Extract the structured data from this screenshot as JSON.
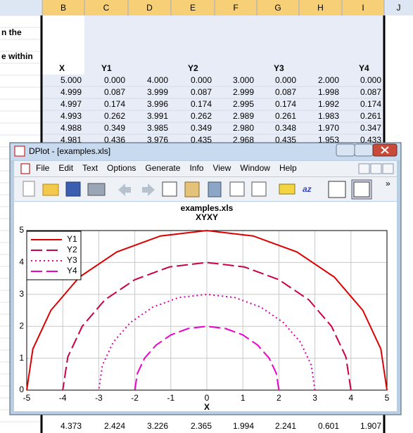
{
  "spreadsheet": {
    "column_headers": [
      "B",
      "C",
      "D",
      "E",
      "F",
      "G",
      "H",
      "I",
      "J"
    ],
    "left_text": [
      "n the",
      "e within"
    ],
    "headers": [
      "X",
      "Y1",
      "Y2",
      "Y3",
      "Y4"
    ],
    "rows": [
      [
        "5.000",
        "0.000",
        "4.000",
        "0.000",
        "3.000",
        "0.000",
        "2.000",
        "0.000"
      ],
      [
        "4.999",
        "0.087",
        "3.999",
        "0.087",
        "2.999",
        "0.087",
        "1.998",
        "0.087"
      ],
      [
        "4.997",
        "0.174",
        "3.996",
        "0.174",
        "2.995",
        "0.174",
        "1.992",
        "0.174"
      ],
      [
        "4.993",
        "0.262",
        "3.991",
        "0.262",
        "2.989",
        "0.261",
        "1.983",
        "0.261"
      ],
      [
        "4.988",
        "0.349",
        "3.985",
        "0.349",
        "2.980",
        "0.348",
        "1.970",
        "0.347"
      ],
      [
        "4.981",
        "0.436",
        "3.976",
        "0.435",
        "2.968",
        "0.435",
        "1.953",
        "0.433"
      ]
    ],
    "bottom_row": [
      "4.373",
      "2.424",
      "3.226",
      "2.365",
      "1.994",
      "2.241",
      "0.601",
      "1.907"
    ]
  },
  "window": {
    "title": "DPlot - [examples.xls]",
    "menu": [
      "File",
      "Edit",
      "Text",
      "Options",
      "Generate",
      "Info",
      "View",
      "Window",
      "Help"
    ]
  },
  "chart_data": {
    "type": "line",
    "title": "examples.xls",
    "subtitle": "XYXY",
    "x_label": "X",
    "xlim": [
      -5,
      5
    ],
    "ylim": [
      0,
      5
    ],
    "xticks": [
      -5,
      -4,
      -3,
      -2,
      -1,
      0,
      1,
      2,
      3,
      4,
      5
    ],
    "yticks": [
      0,
      1,
      2,
      3,
      4,
      5
    ],
    "grid": true,
    "legend": "upper-left",
    "series": [
      {
        "name": "Y1",
        "color": "#dd0000",
        "dash": "solid",
        "x": [
          5,
          4.83,
          4.33,
          3.54,
          2.5,
          1.29,
          0,
          -1.29,
          -2.5,
          -3.54,
          -4.33,
          -4.83,
          -5
        ],
        "values": [
          0,
          1.29,
          2.5,
          3.54,
          4.33,
          4.83,
          5,
          4.83,
          4.33,
          3.54,
          2.5,
          1.29,
          0
        ]
      },
      {
        "name": "Y2",
        "color": "#cc0044",
        "dash": "dashed",
        "x": [
          4,
          3.86,
          3.46,
          2.83,
          2,
          1.04,
          0,
          -1.04,
          -2,
          -2.83,
          -3.46,
          -3.86,
          -4
        ],
        "values": [
          0,
          1.04,
          2,
          2.83,
          3.46,
          3.86,
          4,
          3.86,
          3.46,
          2.83,
          2,
          1.04,
          0
        ]
      },
      {
        "name": "Y3",
        "color": "#dd00aa",
        "dash": "dotted",
        "x": [
          3,
          2.9,
          2.6,
          2.12,
          1.5,
          0.78,
          0,
          -0.78,
          -1.5,
          -2.12,
          -2.6,
          -2.9,
          -3
        ],
        "values": [
          0,
          0.78,
          1.5,
          2.12,
          2.6,
          2.9,
          3,
          2.9,
          2.6,
          2.12,
          1.5,
          0.78,
          0
        ]
      },
      {
        "name": "Y4",
        "color": "#ee00cc",
        "dash": "dashed",
        "x": [
          2,
          1.93,
          1.73,
          1.41,
          1,
          0.52,
          0,
          -0.52,
          -1,
          -1.41,
          -1.73,
          -1.93,
          -2
        ],
        "values": [
          0,
          0.52,
          1,
          1.41,
          1.73,
          1.93,
          2,
          1.93,
          1.73,
          1.41,
          1,
          0.52,
          0
        ]
      }
    ]
  }
}
